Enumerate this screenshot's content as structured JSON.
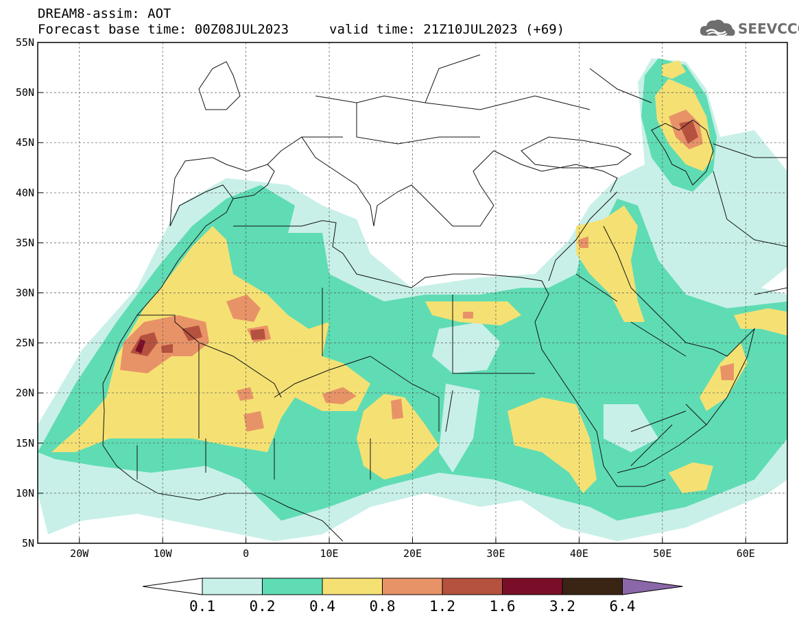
{
  "header": {
    "line1": "DREAM8-assim: AOT",
    "line2": "Forecast base time: 00Z08JUL2023",
    "line3": "valid time: 21Z10JUL2023 (+69)"
  },
  "logo": {
    "text": "SEEVCCC",
    "icon": "cloud-icon"
  },
  "map": {
    "lon_range": [
      -25,
      65
    ],
    "lat_range": [
      5,
      55
    ],
    "lat_ticks": [
      "55N",
      "50N",
      "45N",
      "40N",
      "35N",
      "30N",
      "25N",
      "20N",
      "15N",
      "10N",
      "5N"
    ],
    "lon_ticks": [
      "20W",
      "10W",
      "0",
      "10E",
      "20E",
      "30E",
      "40E",
      "50E",
      "60E"
    ],
    "grid": "dashed"
  },
  "colorbar": {
    "labels": [
      "0.1",
      "0.2",
      "0.4",
      "0.8",
      "1.2",
      "1.6",
      "3.2",
      "6.4"
    ],
    "colors": [
      "#ffffff",
      "#c8f0e8",
      "#5fdcb4",
      "#f5e173",
      "#e89367",
      "#b5513f",
      "#7a0e29",
      "#3a2514",
      "#8a67a8"
    ]
  }
}
